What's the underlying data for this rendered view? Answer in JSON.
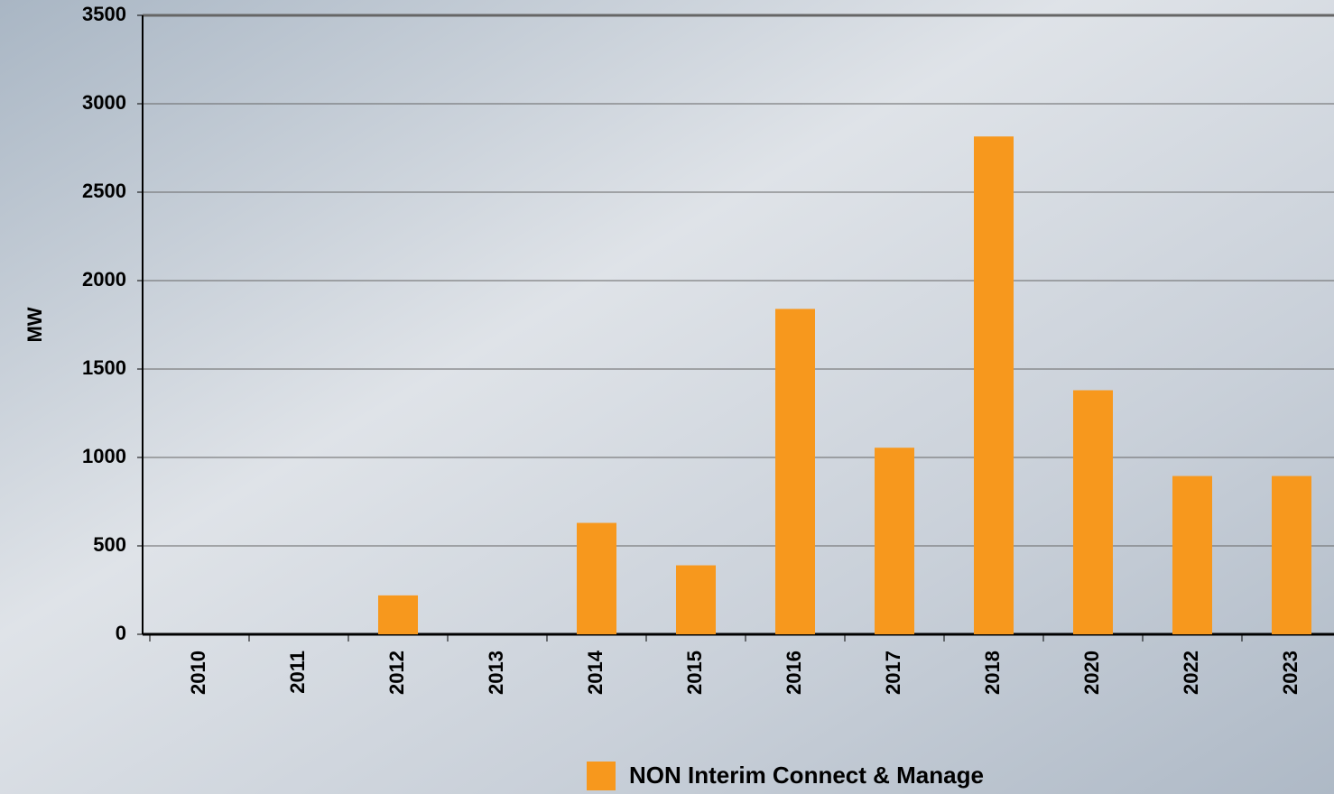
{
  "chart_data": {
    "type": "bar",
    "y_axis_label": "MW",
    "categories": [
      "2010",
      "2011",
      "2012",
      "2013",
      "2014",
      "2015",
      "2016",
      "2017",
      "2018",
      "2020",
      "2022",
      "2023"
    ],
    "series": [
      {
        "name": "NON Interim Connect & Manage",
        "color": "#f7981d",
        "values": [
          0,
          0,
          220,
          0,
          630,
          390,
          1840,
          1055,
          2815,
          1380,
          895,
          895
        ]
      }
    ],
    "ylim": [
      0,
      3500
    ],
    "yticks": [
      0,
      500,
      1000,
      1500,
      2000,
      2500,
      3000,
      3500
    ],
    "grid": true,
    "legend": "bottom"
  }
}
